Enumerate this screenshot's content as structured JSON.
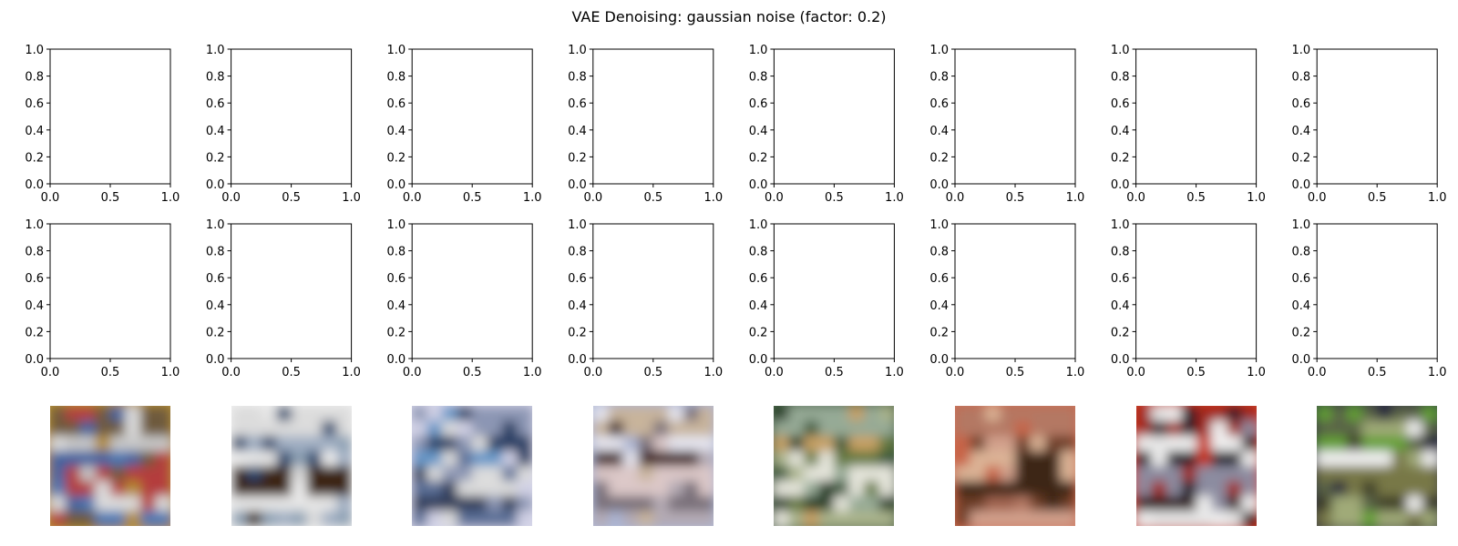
{
  "chart_data": {
    "type": "image-grid",
    "title": "VAE Denoising: gaussian noise (factor: 0.2)",
    "grid": {
      "rows": 3,
      "cols": 8
    },
    "empty_axes": {
      "rows": 2,
      "xlim": [
        0.0,
        1.0
      ],
      "ylim": [
        0.0,
        1.0
      ],
      "xticks": [
        "0.0",
        "0.5",
        "1.0"
      ],
      "yticks": [
        "0.0",
        "0.2",
        "0.4",
        "0.6",
        "0.8",
        "1.0"
      ]
    },
    "images_row": [
      {
        "palette": [
          "#b48c2c",
          "#6e5a3c",
          "#c8c8c8",
          "#3c64a0",
          "#b43c3c",
          "#dcdcdc",
          "#4678b4"
        ]
      },
      {
        "palette": [
          "#f0f0f0",
          "#dcdcdc",
          "#a0afc3",
          "#28466e",
          "#3c2814",
          "#e6e6e6",
          "#8ca0b4"
        ]
      },
      {
        "palette": [
          "#d2d2e6",
          "#8c96b4",
          "#283c64",
          "#6496c8",
          "#dcdcdc",
          "#323c5a",
          "#5a6e96"
        ]
      },
      {
        "palette": [
          "#aab4d2",
          "#c8b49b",
          "#e6e6f0",
          "#3c1e1e",
          "#dcc8c8",
          "#786e78",
          "#b4aab4"
        ]
      },
      {
        "palette": [
          "#3c5a3c",
          "#96aa96",
          "#c8a064",
          "#64783c",
          "#e6e6dc",
          "#283c28",
          "#aab48c"
        ]
      },
      {
        "palette": [
          "#c86446",
          "#b47864",
          "#6e3c28",
          "#dcb496",
          "#3c2814",
          "#a06450",
          "#d2a08c"
        ]
      },
      {
        "palette": [
          "#c83214",
          "#a0281e",
          "#f0f0f0",
          "#1e1e28",
          "#8c8ca0",
          "#321e1e",
          "#e6e6e6"
        ]
      },
      {
        "palette": [
          "#28283c",
          "#5a6446",
          "#64a032",
          "#f0f0f0",
          "#787846",
          "#3c3c28",
          "#a0aa78"
        ]
      }
    ]
  }
}
